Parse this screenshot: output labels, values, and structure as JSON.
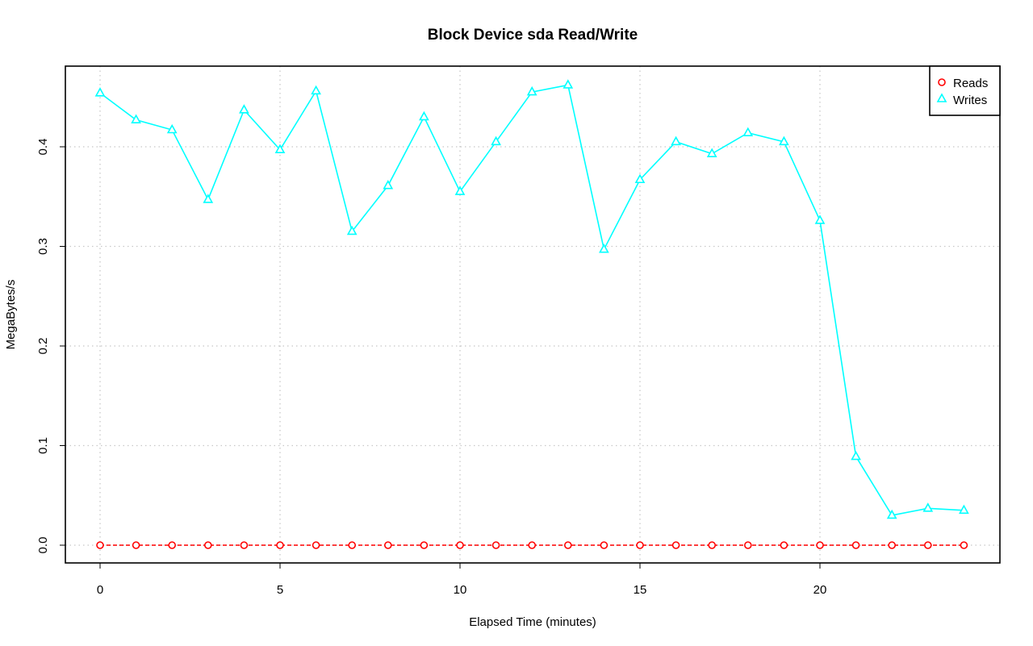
{
  "chart_data": {
    "type": "line",
    "title": "Block Device sda Read/Write",
    "xlabel": "Elapsed Time (minutes)",
    "ylabel": "MegaBytes/s",
    "xlim": [
      0,
      24
    ],
    "ylim": [
      0,
      0.46
    ],
    "x_ticks": [
      0,
      5,
      10,
      15,
      20
    ],
    "x_tick_labels": [
      "0",
      "5",
      "10",
      "15",
      "20"
    ],
    "y_ticks": [
      0.0,
      0.1,
      0.2,
      0.3,
      0.4
    ],
    "y_tick_labels": [
      "0.0",
      "0.1",
      "0.2",
      "0.3",
      "0.4"
    ],
    "grid": true,
    "legend_position": "top-right",
    "x": [
      0,
      1,
      2,
      3,
      4,
      5,
      6,
      7,
      8,
      9,
      10,
      11,
      12,
      13,
      14,
      15,
      16,
      17,
      18,
      19,
      20,
      21,
      22,
      23,
      24
    ],
    "series": [
      {
        "name": "Reads",
        "color": "#ff0000",
        "marker": "circle",
        "line_style": "dashed",
        "values": [
          0,
          0,
          0,
          0,
          0,
          0,
          0,
          0,
          0,
          0,
          0,
          0,
          0,
          0,
          0,
          0,
          0,
          0,
          0,
          0,
          0,
          0,
          0,
          0,
          0
        ]
      },
      {
        "name": "Writes",
        "color": "#00ffff",
        "marker": "triangle",
        "line_style": "solid",
        "values": [
          0.454,
          0.427,
          0.417,
          0.347,
          0.437,
          0.397,
          0.456,
          0.315,
          0.361,
          0.43,
          0.355,
          0.405,
          0.455,
          0.462,
          0.297,
          0.367,
          0.405,
          0.393,
          0.414,
          0.405,
          0.326,
          0.089,
          0.03,
          0.037,
          0.035
        ]
      }
    ]
  }
}
